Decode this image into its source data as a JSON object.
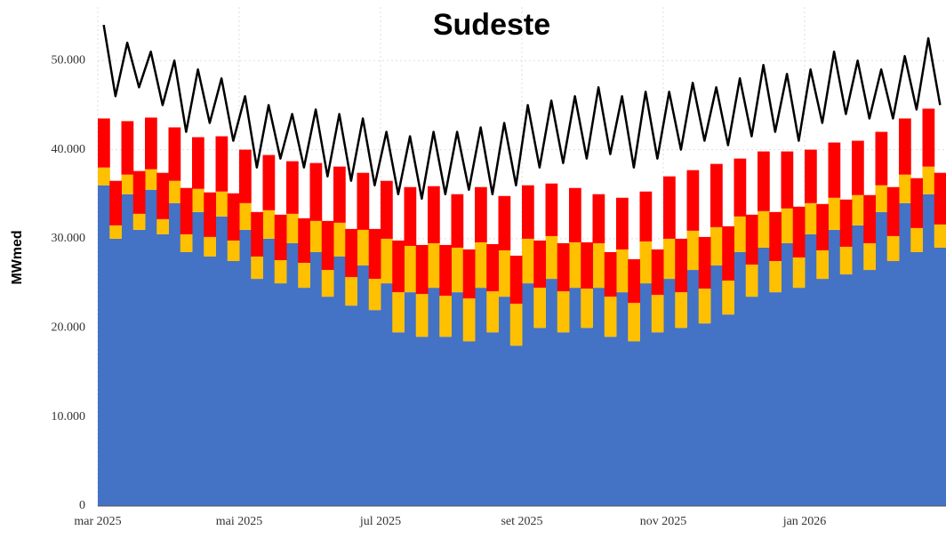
{
  "chart_data": {
    "type": "bar",
    "stacked": true,
    "title": "Sudeste",
    "y_label": "MWmed",
    "categories": [
      "mar 2025",
      null,
      null,
      null,
      null,
      null,
      null,
      null,
      null,
      null,
      null,
      null,
      "mai 2025",
      null,
      null,
      null,
      null,
      null,
      null,
      null,
      null,
      null,
      null,
      null,
      "jul 2025",
      null,
      null,
      null,
      null,
      null,
      null,
      null,
      null,
      null,
      null,
      null,
      "set 2025",
      null,
      null,
      null,
      null,
      null,
      null,
      null,
      null,
      null,
      null,
      null,
      "nov 2025",
      null,
      null,
      null,
      null,
      null,
      null,
      null,
      null,
      null,
      null,
      null,
      "jan 2026",
      null,
      null,
      null,
      null,
      null,
      null,
      null,
      null,
      null,
      null,
      null
    ],
    "series": [
      {
        "color": "#4472c4",
        "values": [
          36000,
          30000,
          35000,
          31000,
          35500,
          30500,
          34000,
          28500,
          33000,
          28000,
          32500,
          27500,
          31000,
          25500,
          30000,
          25000,
          29500,
          24500,
          28500,
          23500,
          28000,
          22500,
          27000,
          22000,
          25000,
          19500,
          24000,
          19000,
          24500,
          19000,
          24000,
          18500,
          24500,
          19500,
          23500,
          18000,
          25000,
          20000,
          25500,
          19500,
          24500,
          20000,
          24500,
          19000,
          24000,
          18500,
          25000,
          19500,
          25500,
          20000,
          26500,
          20500,
          27000,
          21500,
          28500,
          23500,
          29000,
          24000,
          29500,
          24500,
          30500,
          25500,
          31000,
          26000,
          31500,
          26500,
          33000,
          27500,
          34000,
          28500,
          35000,
          29000
        ]
      },
      {
        "color": "#ffc000",
        "values": [
          2000,
          1500,
          2200,
          1800,
          2300,
          1700,
          2500,
          2000,
          2600,
          2200,
          2800,
          2300,
          3000,
          2500,
          3200,
          2600,
          3300,
          2800,
          3500,
          3000,
          3800,
          3200,
          4000,
          3500,
          5000,
          4500,
          5200,
          4800,
          5000,
          4600,
          5000,
          4800,
          5100,
          4600,
          5200,
          4700,
          5000,
          4500,
          4800,
          4600,
          5100,
          4400,
          5000,
          4500,
          4800,
          4300,
          4700,
          4200,
          4500,
          4000,
          4400,
          3900,
          4300,
          3800,
          4000,
          3600,
          4100,
          3500,
          3900,
          3400,
          3500,
          3200,
          3600,
          3100,
          3400,
          3000,
          3000,
          2800,
          3200,
          2700,
          3100,
          2600
        ]
      },
      {
        "color": "#ff0000",
        "values": [
          5500,
          5000,
          6000,
          4800,
          5800,
          5200,
          6000,
          5200,
          5800,
          5000,
          6200,
          5300,
          6000,
          5000,
          6200,
          5100,
          5900,
          5000,
          6500,
          5500,
          6300,
          5400,
          6400,
          5600,
          6500,
          5800,
          6600,
          5500,
          6400,
          5700,
          6000,
          5500,
          6200,
          5300,
          6100,
          5400,
          6000,
          5300,
          5900,
          5400,
          6100,
          5200,
          5500,
          5000,
          5800,
          4900,
          5600,
          5100,
          7000,
          6000,
          6800,
          5800,
          7100,
          6100,
          6500,
          5600,
          6700,
          5500,
          6400,
          5700,
          6000,
          5200,
          6200,
          5300,
          6100,
          5400,
          6000,
          5500,
          6300,
          5600,
          6500,
          5800
        ]
      },
      {
        "type": "line",
        "color": "#000000",
        "values": [
          54000,
          46000,
          52000,
          47000,
          51000,
          45000,
          50000,
          42000,
          49000,
          43000,
          48000,
          41000,
          46000,
          38000,
          45000,
          39000,
          44000,
          38000,
          44500,
          37000,
          44000,
          36500,
          43500,
          36000,
          42000,
          35000,
          41500,
          34500,
          42000,
          35000,
          42000,
          35500,
          42500,
          35000,
          43000,
          36000,
          45000,
          38000,
          45500,
          38500,
          46000,
          39000,
          47000,
          39500,
          46000,
          38000,
          46500,
          39000,
          46500,
          40000,
          47500,
          41000,
          47000,
          40500,
          48000,
          41500,
          49500,
          42000,
          48500,
          41000,
          49000,
          43000,
          51000,
          44000,
          50000,
          43500,
          49000,
          43500,
          50500,
          44500,
          52500,
          45000
        ]
      }
    ],
    "ylim": [
      0,
      56000
    ],
    "yticks": [
      0,
      {
        "value": 10000,
        "label": "10.000"
      },
      {
        "value": 20000,
        "label": "20.000"
      },
      {
        "value": 30000,
        "label": "30.000"
      },
      {
        "value": 40000,
        "label": "40.000"
      },
      {
        "value": 50000,
        "label": "50.000"
      }
    ],
    "grid": true
  }
}
